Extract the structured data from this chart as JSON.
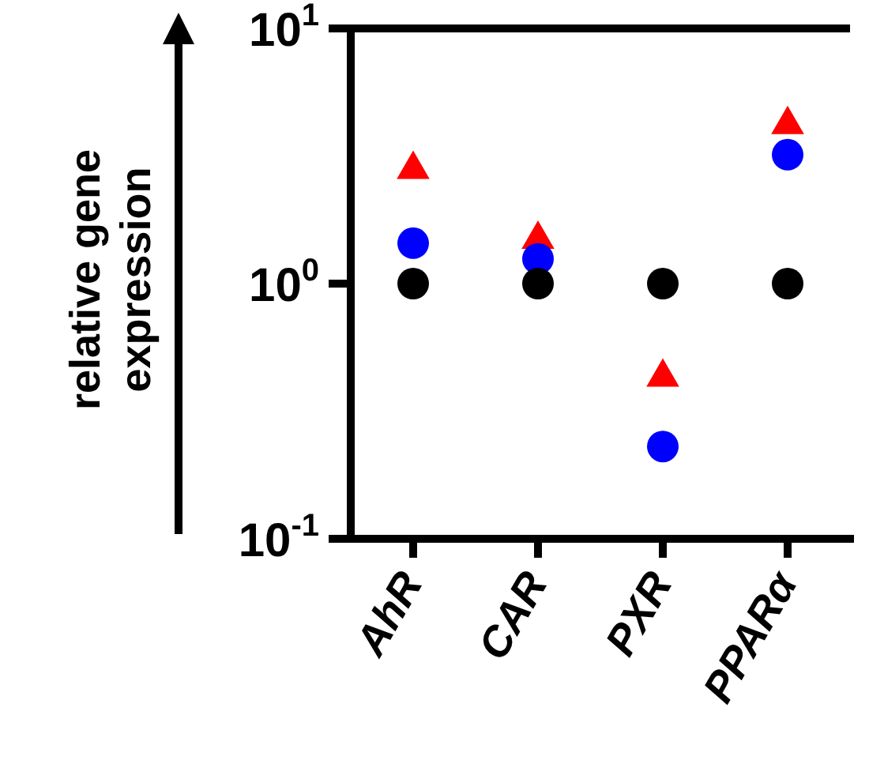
{
  "chart_data": {
    "type": "scatter",
    "ylabel": "relative gene expression",
    "categories": [
      "AhR",
      "CAR",
      "PXR",
      "PPARα"
    ],
    "log": "y",
    "ylim": [
      0.1,
      10
    ],
    "yticks": [
      {
        "value": 0.1,
        "label": "10$^{-1}$"
      },
      {
        "value": 1,
        "label": "10$^{0}$"
      },
      {
        "value": 10,
        "label": "10$^{1}$"
      }
    ],
    "grid": false,
    "legend": false,
    "series": [
      {
        "color": "#000000",
        "marker": "circle",
        "values": [
          1,
          1,
          1,
          1
        ]
      },
      {
        "color": "#0000ff",
        "marker": "circle",
        "values": [
          1.44,
          1.25,
          0.23,
          3.2
        ]
      },
      {
        "color": "#ff0000",
        "marker": "triangle",
        "values": [
          2.8,
          1.49,
          0.43,
          4.2
        ]
      }
    ]
  }
}
